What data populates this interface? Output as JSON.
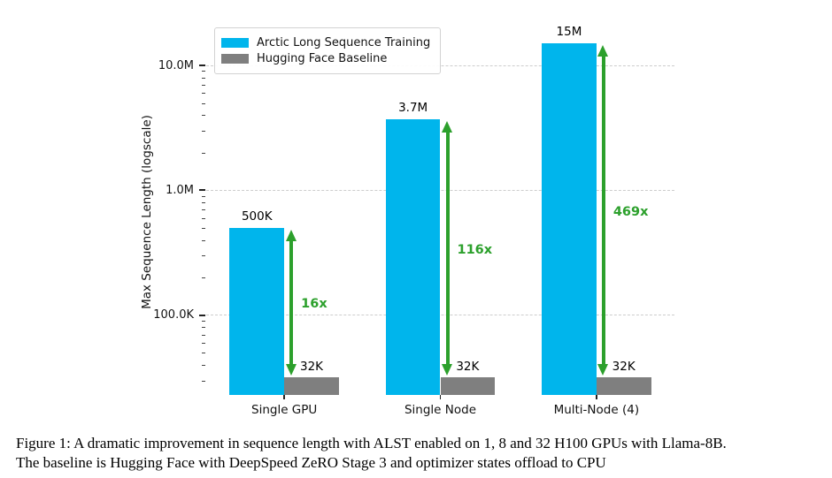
{
  "figure": {
    "caption_line1": "Figure 1: A dramatic improvement in sequence length with ALST enabled on 1, 8 and 32 H100 GPUs with Llama-8B.",
    "caption_line2": "The baseline is Hugging Face with DeepSpeed ZeRO Stage 3 and optimizer states offload to CPU"
  },
  "chart_data": {
    "type": "bar",
    "title": "",
    "ylabel": "Max Sequence Length (logscale)",
    "yscale": "log",
    "ylim": [
      23000,
      19500000
    ],
    "grid": "horizontal dashed at major ticks",
    "legend_position": "upper left",
    "categories": [
      "Single GPU",
      "Single Node",
      "Multi-Node (4)"
    ],
    "yticks": [
      {
        "label": "100.0K",
        "value": 100000
      },
      {
        "label": "1.0M",
        "value": 1000000
      },
      {
        "label": "10.0M",
        "value": 10000000
      }
    ],
    "series": [
      {
        "name": "Arctic Long Sequence Training",
        "color": "#00b5ec",
        "values": [
          500000,
          3700000,
          15000000
        ],
        "value_labels": [
          "500K",
          "3.7M",
          "15M"
        ]
      },
      {
        "name": "Hugging Face Baseline",
        "color": "#7f7f7f",
        "values": [
          32000,
          32000,
          32000
        ],
        "value_labels": [
          "32K",
          "32K",
          "32K"
        ]
      }
    ],
    "annotations": [
      {
        "label": "16x"
      },
      {
        "label": "116x"
      },
      {
        "label": "469x"
      }
    ],
    "annotation_color": "#2ca02c"
  }
}
